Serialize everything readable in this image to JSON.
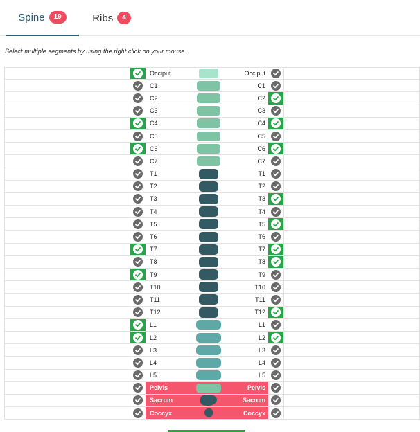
{
  "tabs": [
    {
      "label": "Spine",
      "count": "19"
    },
    {
      "label": "Ribs",
      "count": "4"
    }
  ],
  "hint": "Select multiple segments by using the right click on your mouse.",
  "colors": {
    "accent": "#2aa44a",
    "badge": "#ef4b5f",
    "pelvic_band": "#f5566d",
    "cervical": "#7ec4a4",
    "occiput": "#a8e3cc",
    "thoracic": "#335a63",
    "lumbar": "#5fa8a8"
  },
  "segments": [
    {
      "label": "Occiput",
      "left": true,
      "right": false,
      "region": "occiput"
    },
    {
      "label": "C1",
      "left": false,
      "right": false,
      "region": "cervical"
    },
    {
      "label": "C2",
      "left": false,
      "right": true,
      "region": "cervical"
    },
    {
      "label": "C3",
      "left": false,
      "right": false,
      "region": "cervical"
    },
    {
      "label": "C4",
      "left": true,
      "right": true,
      "region": "cervical"
    },
    {
      "label": "C5",
      "left": false,
      "right": false,
      "region": "cervical"
    },
    {
      "label": "C6",
      "left": true,
      "right": true,
      "region": "cervical"
    },
    {
      "label": "C7",
      "left": false,
      "right": false,
      "region": "cervical"
    },
    {
      "label": "T1",
      "left": false,
      "right": false,
      "region": "thoracic"
    },
    {
      "label": "T2",
      "left": false,
      "right": false,
      "region": "thoracic"
    },
    {
      "label": "T3",
      "left": false,
      "right": true,
      "region": "thoracic"
    },
    {
      "label": "T4",
      "left": false,
      "right": false,
      "region": "thoracic"
    },
    {
      "label": "T5",
      "left": false,
      "right": true,
      "region": "thoracic"
    },
    {
      "label": "T6",
      "left": false,
      "right": false,
      "region": "thoracic"
    },
    {
      "label": "T7",
      "left": true,
      "right": true,
      "region": "thoracic"
    },
    {
      "label": "T8",
      "left": false,
      "right": true,
      "region": "thoracic"
    },
    {
      "label": "T9",
      "left": true,
      "right": false,
      "region": "thoracic"
    },
    {
      "label": "T10",
      "left": false,
      "right": false,
      "region": "thoracic"
    },
    {
      "label": "T11",
      "left": false,
      "right": false,
      "region": "thoracic"
    },
    {
      "label": "T12",
      "left": false,
      "right": true,
      "region": "thoracic"
    },
    {
      "label": "L1",
      "left": true,
      "right": false,
      "region": "lumbar"
    },
    {
      "label": "L2",
      "left": true,
      "right": true,
      "region": "lumbar"
    },
    {
      "label": "L3",
      "left": false,
      "right": false,
      "region": "lumbar"
    },
    {
      "label": "L4",
      "left": false,
      "right": false,
      "region": "lumbar"
    },
    {
      "label": "L5",
      "left": false,
      "right": false,
      "region": "lumbar"
    },
    {
      "label": "Pelvis",
      "left": false,
      "right": false,
      "region": "pelvis"
    },
    {
      "label": "Sacrum",
      "left": false,
      "right": false,
      "region": "sacrum"
    },
    {
      "label": "Coccyx",
      "left": false,
      "right": false,
      "region": "coccyx"
    }
  ]
}
